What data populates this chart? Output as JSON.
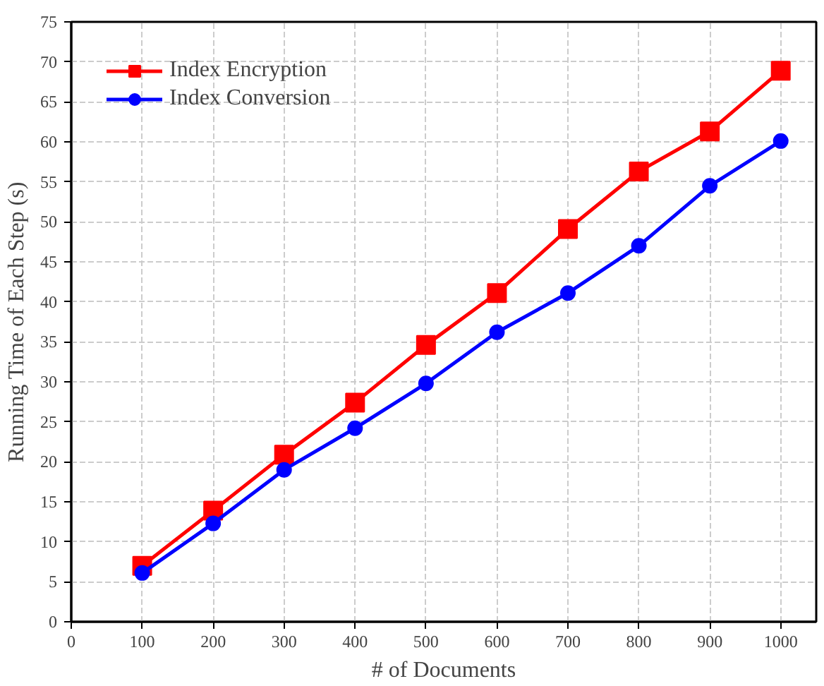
{
  "chart_data": {
    "type": "line",
    "xlabel": "# of Documents",
    "ylabel": "Running Time of Each Step (s)",
    "x": [
      100,
      200,
      300,
      400,
      500,
      600,
      700,
      800,
      900,
      1000
    ],
    "series": [
      {
        "name": "Index Encryption",
        "color": "#ff0000",
        "marker": "square",
        "values": [
          7.0,
          13.9,
          20.9,
          27.4,
          34.6,
          41.1,
          49.1,
          56.3,
          61.3,
          68.9
        ]
      },
      {
        "name": "Index Conversion",
        "color": "#0000ff",
        "marker": "circle",
        "values": [
          6.1,
          12.3,
          19.0,
          24.2,
          29.8,
          36.2,
          41.1,
          47.0,
          54.5,
          60.1
        ]
      }
    ],
    "xlim": [
      0,
      1050
    ],
    "xticks": [
      0,
      100,
      200,
      300,
      400,
      500,
      600,
      700,
      800,
      900,
      1000
    ],
    "ylim": [
      0,
      75
    ],
    "yticks": [
      0,
      5,
      10,
      15,
      20,
      25,
      30,
      35,
      40,
      45,
      50,
      55,
      60,
      65,
      70,
      75
    ],
    "grid": true,
    "legend": "top left",
    "line_style": "solid"
  }
}
